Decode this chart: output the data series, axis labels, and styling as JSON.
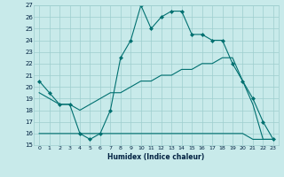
{
  "xlabel": "Humidex (Indice chaleur)",
  "background_color": "#c8eaea",
  "grid_color": "#9ecece",
  "line_color": "#007070",
  "xlim": [
    -0.5,
    23.5
  ],
  "ylim": [
    15,
    27
  ],
  "yticks": [
    15,
    16,
    17,
    18,
    19,
    20,
    21,
    22,
    23,
    24,
    25,
    26,
    27
  ],
  "xticks": [
    0,
    1,
    2,
    3,
    4,
    5,
    6,
    7,
    8,
    9,
    10,
    11,
    12,
    13,
    14,
    15,
    16,
    17,
    18,
    19,
    20,
    21,
    22,
    23
  ],
  "line1": {
    "x": [
      0,
      1,
      2,
      3,
      4,
      5,
      6,
      7,
      8,
      9,
      10,
      11,
      12,
      13,
      14,
      15,
      16,
      17,
      18,
      19,
      20,
      21,
      22,
      23
    ],
    "y": [
      20.5,
      19.5,
      18.5,
      18.5,
      16.0,
      15.5,
      16.0,
      18.0,
      22.5,
      24.0,
      27.0,
      25.0,
      26.0,
      26.5,
      26.5,
      24.5,
      24.5,
      24.0,
      24.0,
      22.0,
      20.5,
      19.0,
      17.0,
      15.5
    ]
  },
  "line2": {
    "x": [
      0,
      1,
      2,
      3,
      4,
      5,
      6,
      7,
      8,
      9,
      10,
      11,
      12,
      13,
      14,
      15,
      16,
      17,
      18,
      19,
      20,
      21,
      22,
      23
    ],
    "y": [
      19.5,
      19.0,
      18.5,
      18.5,
      18.0,
      18.5,
      19.0,
      19.5,
      19.5,
      20.0,
      20.5,
      20.5,
      21.0,
      21.0,
      21.5,
      21.5,
      22.0,
      22.0,
      22.5,
      22.5,
      20.5,
      18.5,
      15.5,
      15.5
    ]
  },
  "line3": {
    "x": [
      0,
      1,
      2,
      3,
      4,
      5,
      6,
      7,
      8,
      9,
      10,
      11,
      12,
      13,
      14,
      15,
      16,
      17,
      18,
      19,
      20,
      21,
      22,
      23
    ],
    "y": [
      16.0,
      16.0,
      16.0,
      16.0,
      16.0,
      16.0,
      16.0,
      16.0,
      16.0,
      16.0,
      16.0,
      16.0,
      16.0,
      16.0,
      16.0,
      16.0,
      16.0,
      16.0,
      16.0,
      16.0,
      16.0,
      15.5,
      15.5,
      15.5
    ]
  }
}
